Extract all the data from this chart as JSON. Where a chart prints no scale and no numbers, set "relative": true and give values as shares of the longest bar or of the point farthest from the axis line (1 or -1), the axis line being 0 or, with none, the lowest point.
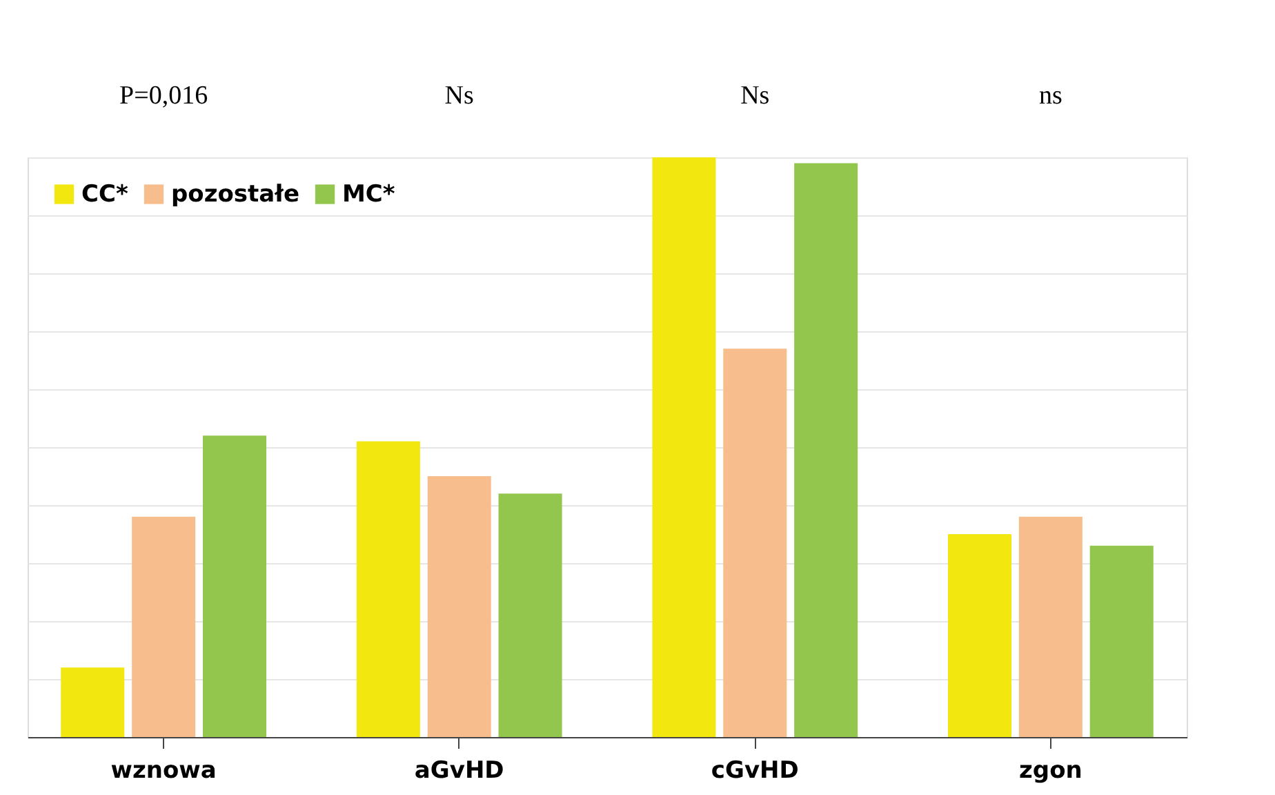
{
  "chart_data": {
    "type": "bar",
    "relative": true,
    "categories": [
      "wznowa",
      "aGvHD",
      "cGvHD",
      "zgon"
    ],
    "series": [
      {
        "name": "CC*",
        "color": "#f2e80f",
        "values": [
          0.12,
          0.51,
          1,
          0.35
        ]
      },
      {
        "name": "pozostałe",
        "color": "#f8bd8c",
        "values": [
          0.38,
          0.45,
          0.67,
          0.38
        ]
      },
      {
        "name": "MC*",
        "color": "#92c64c",
        "values": [
          0.52,
          0.42,
          0.99,
          0.33
        ]
      }
    ],
    "annotations": [
      "P=0,016",
      "Ns",
      "Ns",
      "ns"
    ],
    "grid": "y",
    "legend": "top left"
  }
}
